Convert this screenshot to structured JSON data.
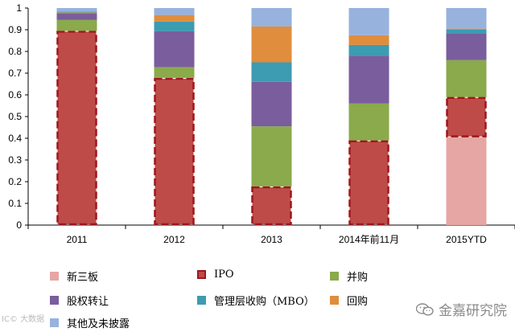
{
  "chart_data": {
    "type": "bar",
    "stacked": true,
    "title": "",
    "xlabel": "",
    "ylabel": "",
    "ylim": [
      0,
      1
    ],
    "yticks": [
      "0",
      "0.1",
      "0.2",
      "0.3",
      "0.4",
      "0.5",
      "0.6",
      "0.7",
      "0.8",
      "0.9",
      "1"
    ],
    "categories": [
      "2011",
      "2012",
      "2013",
      "2014年前11月",
      "2015YTD"
    ],
    "series": [
      {
        "name": "新三板",
        "color": "#E6A6A4",
        "style": "solid",
        "values": [
          0,
          0,
          0,
          0,
          0.405
        ]
      },
      {
        "name": "IPO",
        "color": "#BE4B48",
        "style": "dashed",
        "values": [
          0.895,
          0.678,
          0.178,
          0.39,
          0.185
        ]
      },
      {
        "name": "并购",
        "color": "#8AAA4B",
        "style": "solid",
        "values": [
          0.05,
          0.05,
          0.277,
          0.17,
          0.17
        ]
      },
      {
        "name": "股权转让",
        "color": "#7A5D9D",
        "style": "solid",
        "values": [
          0.03,
          0.165,
          0.205,
          0.22,
          0.123
        ]
      },
      {
        "name": "管理层收购（MBO）",
        "color": "#3D9BB2",
        "style": "solid",
        "values": [
          0.005,
          0.045,
          0.09,
          0.05,
          0.017
        ]
      },
      {
        "name": "回购",
        "color": "#E08D3D",
        "style": "solid",
        "values": [
          0.005,
          0.03,
          0.165,
          0.045,
          0.005
        ]
      },
      {
        "name": "其他及未披露",
        "color": "#97B2DD",
        "style": "solid",
        "values": [
          0.015,
          0.032,
          0.085,
          0.125,
          0.095
        ]
      }
    ],
    "legend_position": "bottom",
    "grid": false
  },
  "watermarks": {
    "left": "IC© 大数据",
    "right": "金嘉研究院",
    "right_icon": "wechat-icon"
  }
}
